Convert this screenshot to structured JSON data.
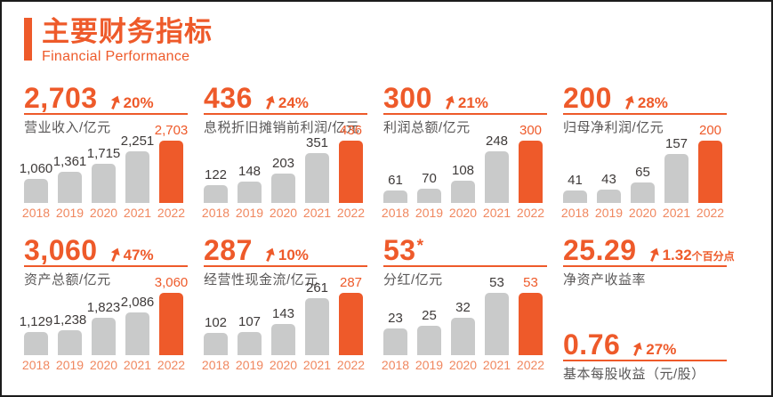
{
  "header": {
    "title": "主要财务指标",
    "subtitle": "Financial Performance"
  },
  "colors": {
    "primary": "#ee5a2a",
    "bar_gray": "#c9caca",
    "year": "#f0875f",
    "value_text": "#3e3a39",
    "label_text": "#595757",
    "border": "#1c1c1c"
  },
  "chart_data": [
    {
      "type": "bar",
      "headline": "2,703",
      "change": "20%",
      "title": "营业收入/亿元",
      "categories": [
        "2018",
        "2019",
        "2020",
        "2021",
        "2022"
      ],
      "values": [
        1060,
        1361,
        1715,
        2251,
        2703
      ],
      "value_labels": [
        "1,060",
        "1,361",
        "1,715",
        "2,251",
        "2,703"
      ],
      "highlight_index": 4,
      "ylim": [
        0,
        2703
      ],
      "legend": "none",
      "grid": "off"
    },
    {
      "type": "bar",
      "headline": "436",
      "change": "24%",
      "title": "息税折旧摊销前利润/亿元",
      "categories": [
        "2018",
        "2019",
        "2020",
        "2021",
        "2022"
      ],
      "values": [
        122,
        148,
        203,
        351,
        436
      ],
      "value_labels": [
        "122",
        "148",
        "203",
        "351",
        "436"
      ],
      "highlight_index": 4,
      "ylim": [
        0,
        436
      ],
      "legend": "none",
      "grid": "off"
    },
    {
      "type": "bar",
      "headline": "300",
      "change": "21%",
      "title": "利润总额/亿元",
      "categories": [
        "2018",
        "2019",
        "2020",
        "2021",
        "2022"
      ],
      "values": [
        61,
        70,
        108,
        248,
        300
      ],
      "value_labels": [
        "61",
        "70",
        "108",
        "248",
        "300"
      ],
      "highlight_index": 4,
      "ylim": [
        0,
        300
      ],
      "legend": "none",
      "grid": "off"
    },
    {
      "type": "bar",
      "headline": "200",
      "change": "28%",
      "title": "归母净利润/亿元",
      "categories": [
        "2018",
        "2019",
        "2020",
        "2021",
        "2022"
      ],
      "values": [
        41,
        43,
        65,
        157,
        200
      ],
      "value_labels": [
        "41",
        "43",
        "65",
        "157",
        "200"
      ],
      "highlight_index": 4,
      "ylim": [
        0,
        200
      ],
      "legend": "none",
      "grid": "off"
    },
    {
      "type": "bar",
      "headline": "3,060",
      "change": "47%",
      "title": "资产总额/亿元",
      "categories": [
        "2018",
        "2019",
        "2020",
        "2021",
        "2022"
      ],
      "values": [
        1129,
        1238,
        1823,
        2086,
        3060
      ],
      "value_labels": [
        "1,129",
        "1,238",
        "1,823",
        "2,086",
        "3,060"
      ],
      "highlight_index": 4,
      "ylim": [
        0,
        3060
      ],
      "legend": "none",
      "grid": "off"
    },
    {
      "type": "bar",
      "headline": "287",
      "change": "10%",
      "title": "经营性现金流/亿元",
      "categories": [
        "2018",
        "2019",
        "2020",
        "2021",
        "2022"
      ],
      "values": [
        102,
        107,
        143,
        261,
        287
      ],
      "value_labels": [
        "102",
        "107",
        "143",
        "261",
        "287"
      ],
      "highlight_index": 4,
      "ylim": [
        0,
        287
      ],
      "legend": "none",
      "grid": "off"
    },
    {
      "type": "bar",
      "headline": "53",
      "suffix": "*",
      "change": null,
      "title": "分红/亿元",
      "categories": [
        "2018",
        "2019",
        "2020",
        "2021",
        "2022"
      ],
      "values": [
        23,
        25,
        32,
        53,
        53
      ],
      "value_labels": [
        "23",
        "25",
        "32",
        "53",
        "53"
      ],
      "highlight_index": 4,
      "ylim": [
        0,
        53
      ],
      "legend": "none",
      "grid": "off"
    }
  ],
  "stats": [
    {
      "headline": "25.29",
      "change": "1.32",
      "change_unit": "个百分点",
      "label": "净资产收益率"
    },
    {
      "headline": "0.76",
      "change": "27%",
      "change_unit": "",
      "label": "基本每股收益（元/股）"
    }
  ]
}
